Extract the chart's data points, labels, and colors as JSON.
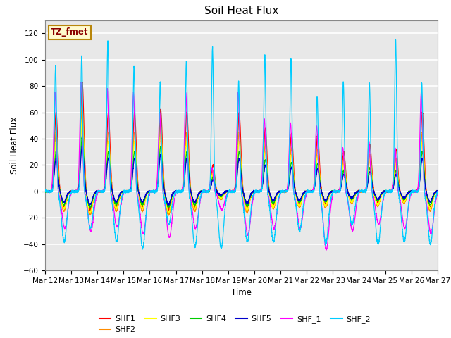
{
  "title": "Soil Heat Flux",
  "ylabel": "Soil Heat Flux",
  "xlabel": "Time",
  "ylim": [
    -60,
    130
  ],
  "yticks": [
    -60,
    -40,
    -20,
    0,
    20,
    40,
    60,
    80,
    100,
    120
  ],
  "x_tick_labels": [
    "Mar 12",
    "Mar 13",
    "Mar 14",
    "Mar 15",
    "Mar 16",
    "Mar 17",
    "Mar 18",
    "Mar 19",
    "Mar 20",
    "Mar 21",
    "Mar 22",
    "Mar 23",
    "Mar 24",
    "Mar 25",
    "Mar 26",
    "Mar 27"
  ],
  "annotation_text": "TZ_fmet",
  "annotation_color": "#8B0000",
  "annotation_bg": "#FFFACD",
  "annotation_border": "#B8860B",
  "series_colors": {
    "SHF1": "#FF0000",
    "SHF2": "#FF8C00",
    "SHF3": "#FFFF00",
    "SHF4": "#00CC00",
    "SHF5": "#0000CC",
    "SHF_1": "#FF00FF",
    "SHF_2": "#00CCFF"
  },
  "plot_bg": "#E8E8E8",
  "grid_color": "#FFFFFF",
  "n_days": 15,
  "spd": 288,
  "shf1_peaks": [
    60,
    83,
    60,
    60,
    62,
    60,
    20,
    60,
    48,
    44,
    43,
    30,
    35,
    32,
    60
  ],
  "shf2_peaks": [
    45,
    65,
    45,
    45,
    50,
    45,
    16,
    45,
    36,
    33,
    32,
    25,
    28,
    25,
    45
  ],
  "shf3_peaks": [
    38,
    55,
    38,
    38,
    43,
    38,
    14,
    38,
    30,
    28,
    27,
    21,
    24,
    21,
    38
  ],
  "shf4_peaks": [
    30,
    42,
    30,
    30,
    34,
    30,
    11,
    30,
    24,
    22,
    21,
    16,
    18,
    16,
    30
  ],
  "shf5_peaks": [
    25,
    35,
    25,
    25,
    28,
    25,
    9,
    25,
    20,
    18,
    17,
    13,
    15,
    13,
    25
  ],
  "shf1_neg": [
    -12,
    -14,
    -12,
    -12,
    -14,
    -12,
    -5,
    -13,
    -11,
    -10,
    -10,
    -8,
    -9,
    -8,
    -12
  ],
  "shf2_neg": [
    -15,
    -18,
    -15,
    -15,
    -18,
    -15,
    -6,
    -16,
    -13,
    -12,
    -12,
    -9,
    -11,
    -9,
    -15
  ],
  "shf3_neg": [
    -13,
    -16,
    -13,
    -13,
    -16,
    -13,
    -5,
    -14,
    -12,
    -11,
    -11,
    -8,
    -10,
    -8,
    -13
  ],
  "shf4_neg": [
    -10,
    -12,
    -10,
    -10,
    -12,
    -10,
    -4,
    -11,
    -9,
    -8,
    -8,
    -6,
    -7,
    -6,
    -10
  ],
  "shf5_neg": [
    -8,
    -10,
    -8,
    -8,
    -10,
    -8,
    -3,
    -9,
    -7,
    -7,
    -7,
    -5,
    -6,
    -5,
    -8
  ],
  "shf_1_pos": [
    75,
    83,
    78,
    75,
    60,
    75,
    18,
    75,
    55,
    52,
    50,
    33,
    38,
    33,
    75
  ],
  "shf_1_neg": [
    -28,
    -30,
    -27,
    -32,
    -35,
    -28,
    -14,
    -33,
    -28,
    -28,
    -44,
    -30,
    -25,
    -28,
    -32
  ],
  "shf_2_peaks": [
    95,
    103,
    115,
    95,
    83,
    99,
    109,
    83,
    104,
    101,
    72,
    83,
    82,
    115,
    83
  ],
  "shf_2_neg": [
    -38,
    -28,
    -38,
    -43,
    -25,
    -42,
    -43,
    -38,
    -38,
    -30,
    -40,
    -25,
    -40,
    -38,
    -40
  ]
}
